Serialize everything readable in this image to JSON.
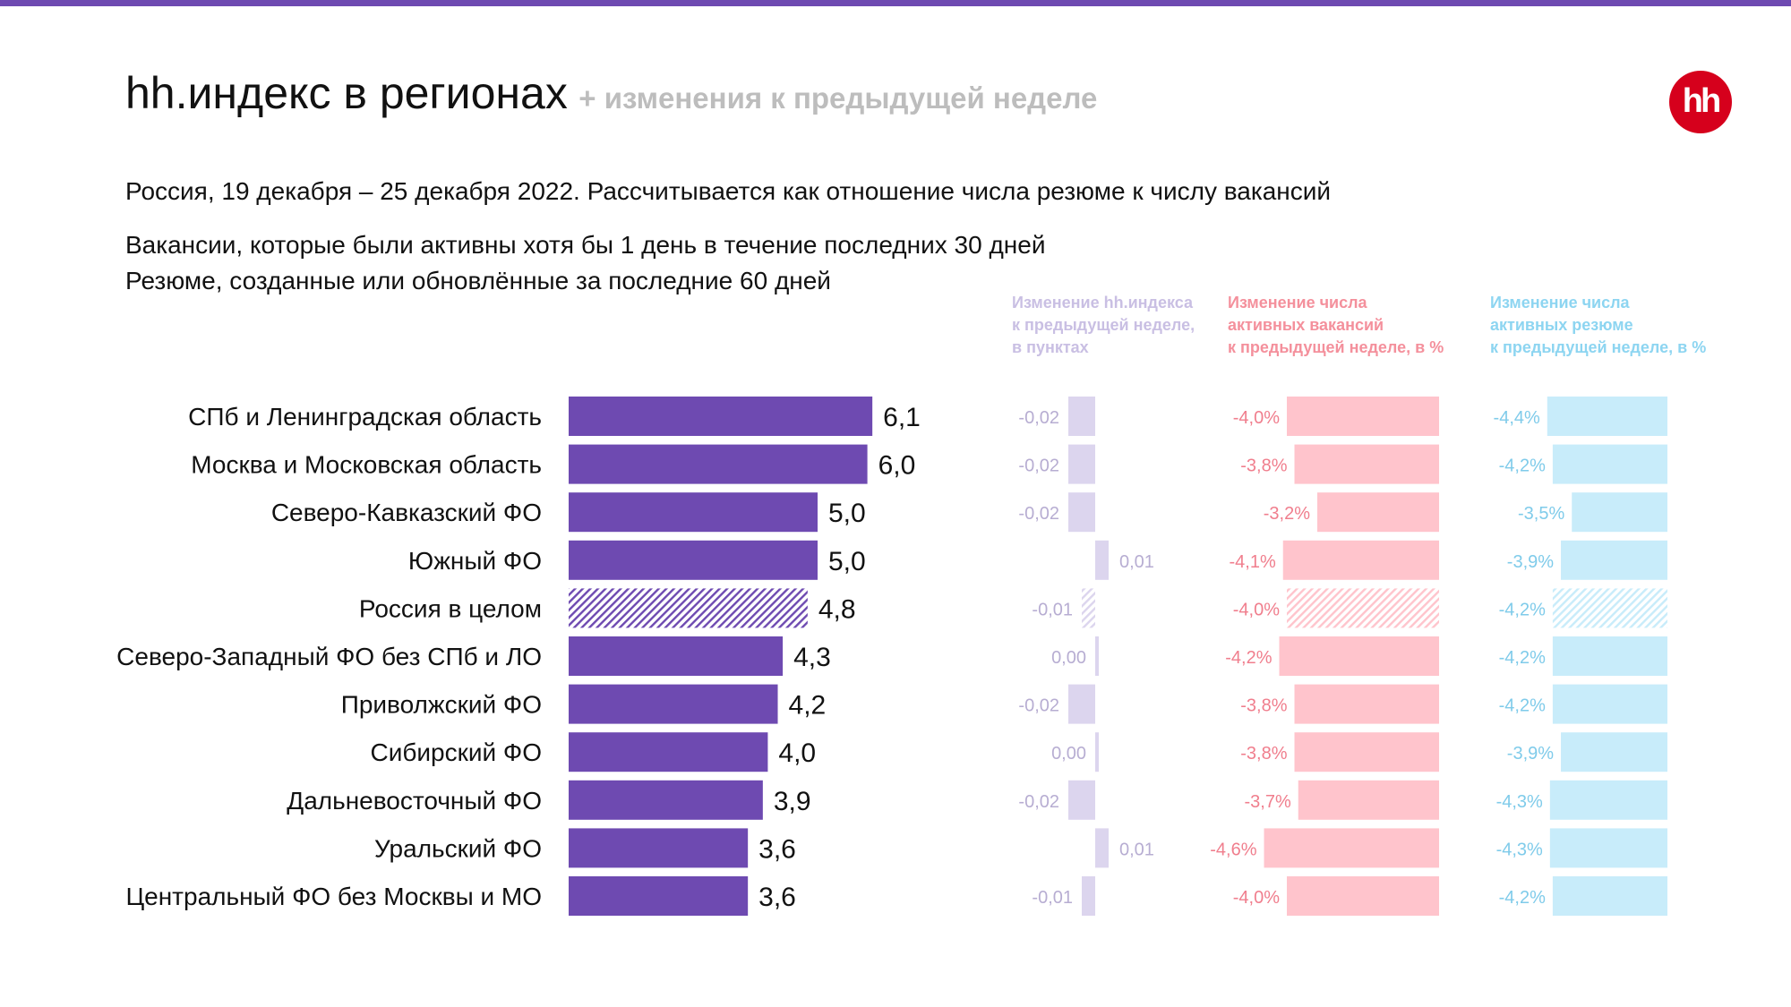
{
  "header": {
    "title": "hh.индекс в регионах",
    "title_suffix": "+ изменения к предыдущей неделе",
    "logo_text": "hh"
  },
  "subtitle": "Россия, 19 декабря – 25 декабря 2022. Рассчитывается как отношение числа резюме к числу вакансий",
  "notes": [
    "Вакансии, которые были активны хотя бы 1 день в течение последних 30 дней",
    "Резюме, созданные или обновлённые за последние 60 дней"
  ],
  "colors": {
    "accent": "#6E4AB1",
    "logo": "#D6001C",
    "index_change": "#DCD5EE",
    "vacancies_change": "#FFC4CC",
    "resumes_change": "#C8ECFA"
  },
  "chart_data": {
    "type": "bar",
    "orientation": "horizontal",
    "categories": [
      "СПб и Ленинградская область",
      "Москва и Московская область",
      "Северо-Кавказский ФО",
      "Южный ФО",
      "Россия в целом",
      "Северо-Западный ФО без СПб и ЛО",
      "Приволжский ФО",
      "Сибирский ФО",
      "Дальневосточный ФО",
      "Уральский ФО",
      "Центральный ФО без Москвы и МО"
    ],
    "highlight_category": "Россия в целом",
    "series": [
      {
        "key": "index",
        "values": [
          6.1,
          6.0,
          5.0,
          5.0,
          4.8,
          4.3,
          4.2,
          4.0,
          3.9,
          3.6,
          3.6
        ],
        "labels": [
          "6,1",
          "6,0",
          "5,0",
          "5,0",
          "4,8",
          "4,3",
          "4,2",
          "4,0",
          "3,9",
          "3,6",
          "3,6"
        ]
      },
      {
        "key": "index_change",
        "name_lines": [
          "Изменение hh.индекса",
          "к предыдущей неделе,",
          "в пунктах"
        ],
        "values": [
          -0.02,
          -0.02,
          -0.02,
          0.01,
          -0.01,
          0.0,
          -0.02,
          0.0,
          -0.02,
          0.01,
          -0.01
        ],
        "labels": [
          "-0,02",
          "-0,02",
          "-0,02",
          "0,01",
          "-0,01",
          "0,00",
          "-0,02",
          "0,00",
          "-0,02",
          "0,01",
          "-0,01"
        ]
      },
      {
        "key": "vacancies_change",
        "name_lines": [
          "Изменение числа",
          "активных вакансий",
          "к предыдущей неделе, в %"
        ],
        "values": [
          -4.0,
          -3.8,
          -3.2,
          -4.1,
          -4.0,
          -4.2,
          -3.8,
          -3.8,
          -3.7,
          -4.6,
          -4.0
        ],
        "labels": [
          "-4,0%",
          "-3,8%",
          "-3,2%",
          "-4,1%",
          "-4,0%",
          "-4,2%",
          "-3,8%",
          "-3,8%",
          "-3,7%",
          "-4,6%",
          "-4,0%"
        ]
      },
      {
        "key": "resumes_change",
        "name_lines": [
          "Изменение числа",
          "активных резюме",
          "к предыдущей неделе, в %"
        ],
        "values": [
          -4.4,
          -4.2,
          -3.5,
          -3.9,
          -4.2,
          -4.2,
          -4.2,
          -3.9,
          -4.3,
          -4.3,
          -4.2
        ],
        "labels": [
          "-4,4%",
          "-4,2%",
          "-3,5%",
          "-3,9%",
          "-4,2%",
          "-4,2%",
          "-4,2%",
          "-3,9%",
          "-4,3%",
          "-4,3%",
          "-4,2%"
        ]
      }
    ]
  }
}
